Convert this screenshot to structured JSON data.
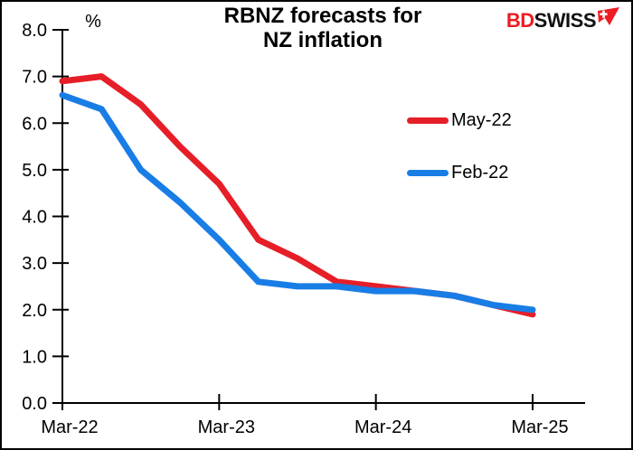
{
  "header": {
    "title": "RBNZ forecasts for\nNZ inflation",
    "logo": {
      "part1": "BD",
      "part2": "SWISS",
      "part1_color": "#ed1c24",
      "part2_color": "#111111",
      "icon": "swiss-arrow-icon",
      "icon_color": "#ed1c24",
      "icon_cross_color": "#ffffff"
    }
  },
  "chart_data": {
    "type": "line",
    "title": "RBNZ forecasts for NZ inflation",
    "xlabel": "",
    "ylabel": "%",
    "ylim": [
      0.0,
      8.0
    ],
    "ytick_step": 1.0,
    "ytick_labels": [
      "0.0",
      "1.0",
      "2.0",
      "3.0",
      "4.0",
      "5.0",
      "6.0",
      "7.0",
      "8.0"
    ],
    "x": [
      "Mar-22",
      "Jun-22",
      "Sep-22",
      "Dec-22",
      "Mar-23",
      "Jun-23",
      "Sep-23",
      "Dec-23",
      "Mar-24",
      "Jun-24",
      "Sep-24",
      "Dec-24",
      "Mar-25"
    ],
    "xtick_labels": [
      "Mar-22",
      "Mar-23",
      "Mar-24",
      "Mar-25"
    ],
    "grid": false,
    "legend_position": "inside-upper-right",
    "axis_color": "#000000",
    "series": [
      {
        "name": "May-22",
        "color": "#e61e28",
        "values": [
          6.9,
          7.0,
          6.4,
          5.5,
          4.7,
          3.5,
          3.1,
          2.6,
          2.5,
          2.4,
          2.3,
          2.1,
          1.9
        ]
      },
      {
        "name": "Feb-22",
        "color": "#197de6",
        "values": [
          6.6,
          6.3,
          5.0,
          4.3,
          3.5,
          2.6,
          2.5,
          2.5,
          2.4,
          2.4,
          2.3,
          2.1,
          2.0
        ]
      }
    ]
  }
}
